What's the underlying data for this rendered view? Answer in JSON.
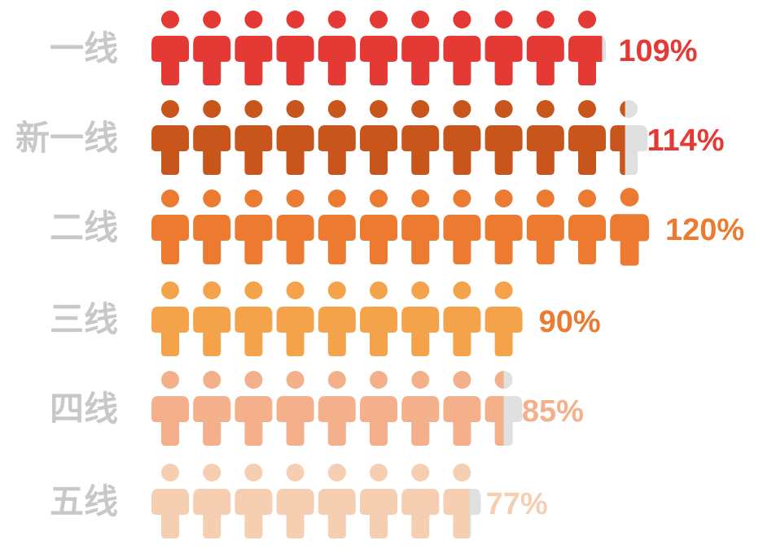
{
  "chart_data": {
    "type": "pictograph",
    "unit": "%",
    "icon": "person-icon",
    "icon_value": 10,
    "categories": [
      "一线",
      "新一线",
      "二线",
      "三线",
      "四线",
      "五线"
    ],
    "values": [
      109,
      114,
      120,
      90,
      85,
      77
    ],
    "value_labels": [
      "109%",
      "114%",
      "120%",
      "90%",
      "85%",
      "77%"
    ],
    "icon_colors": [
      "#e53935",
      "#c8551b",
      "#ec7a30",
      "#f5a34b",
      "#f4b08a",
      "#f6cfb2"
    ],
    "label_colors": [
      "#e53935",
      "#e53935",
      "#ec7a30",
      "#ec7a30",
      "#f4b08a",
      "#f6cfb2"
    ],
    "empty_icon_color": "#e0e0e0",
    "category_label_color": "#c8c8c8"
  }
}
